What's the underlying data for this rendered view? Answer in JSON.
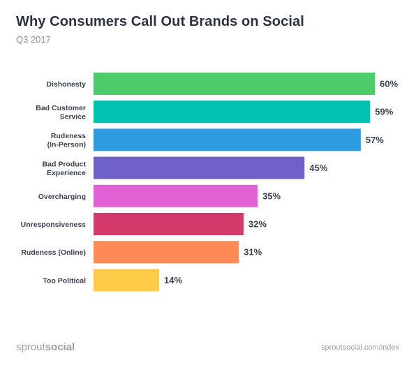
{
  "title": "Why Consumers Call Out Brands on Social",
  "subtitle": "Q3 2017",
  "chart_data": {
    "type": "bar",
    "orientation": "horizontal",
    "categories": [
      [
        "Dishonesty"
      ],
      [
        "Bad Customer",
        "Service"
      ],
      [
        "Rudeness",
        "(In-Person)"
      ],
      [
        "Bad Product",
        "Experience"
      ],
      [
        "Overcharging"
      ],
      [
        "Unresponsiveness"
      ],
      [
        "Rudeness (Online)"
      ],
      [
        "Too Political"
      ]
    ],
    "values": [
      60,
      59,
      57,
      45,
      35,
      32,
      31,
      14
    ],
    "value_labels": [
      "60%",
      "59%",
      "57%",
      "45%",
      "35%",
      "32%",
      "31%",
      "14%"
    ],
    "unit": "%",
    "colors": [
      "#4ccd6a",
      "#00c2b0",
      "#2d9be0",
      "#6f61c8",
      "#e262d6",
      "#d43a6a",
      "#ff8a55",
      "#ffca47"
    ],
    "xlim": [
      0,
      60
    ],
    "grid": false,
    "legend": "none"
  },
  "footer": {
    "logo_part_1": "sprout",
    "logo_part_2": "social",
    "url": "sproutsocial.com/index"
  }
}
